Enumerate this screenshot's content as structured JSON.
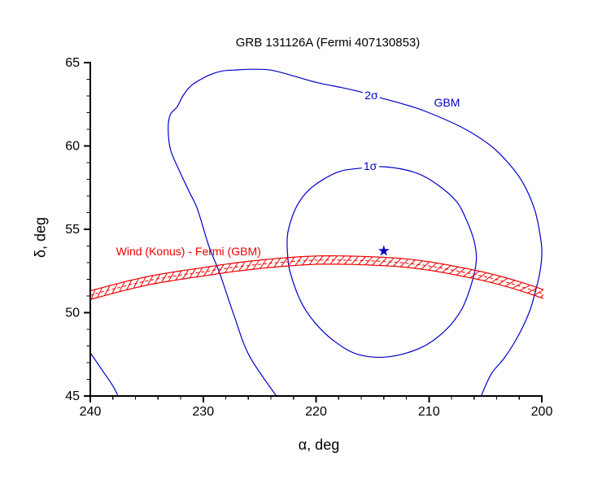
{
  "title": "GRB 131126A (Fermi 407130853)",
  "colors": {
    "contour_blue": "#0000cc",
    "annulus_red": "#ee0000",
    "axis_black": "#000000",
    "background": "#ffffff"
  },
  "chart_data": {
    "type": "line",
    "subtype": "sky-localization contour map",
    "title": "GRB 131126A (Fermi 407130853)",
    "xlabel": "α, deg",
    "ylabel": "δ, deg",
    "xlim": [
      240,
      200
    ],
    "ylim": [
      45,
      65
    ],
    "x_major_ticks": [
      240,
      230,
      220,
      210,
      200
    ],
    "x_minor_step": 2,
    "y_major_ticks": [
      45,
      50,
      55,
      60,
      65
    ],
    "y_minor_step": 1,
    "grid": false,
    "legend": "none",
    "series": [
      {
        "name": "GBM 1-sigma contour",
        "role": "contour",
        "label": "1σ",
        "color": "#0000cc",
        "closed": true,
        "points": [
          [
            213.9,
            58.75
          ],
          [
            216.3,
            58.65
          ],
          [
            218.2,
            58.4
          ],
          [
            220.4,
            57.5
          ],
          [
            221.7,
            56.4
          ],
          [
            222.5,
            54.8
          ],
          [
            222.5,
            53.3
          ],
          [
            222.2,
            52.2
          ],
          [
            221.3,
            50.6
          ],
          [
            220.1,
            49.4
          ],
          [
            218.4,
            48.3
          ],
          [
            216.3,
            47.5
          ],
          [
            213.6,
            47.35
          ],
          [
            210.7,
            47.9
          ],
          [
            208.6,
            48.9
          ],
          [
            207.1,
            50.2
          ],
          [
            206.2,
            51.8
          ],
          [
            205.8,
            53.15
          ],
          [
            206.0,
            54.3
          ],
          [
            206.7,
            55.6
          ],
          [
            207.6,
            56.7
          ],
          [
            209.3,
            57.7
          ],
          [
            211.2,
            58.4
          ]
        ]
      },
      {
        "name": "GBM 2-sigma contour",
        "role": "contour",
        "label": "2σ",
        "color": "#0000cc",
        "closed": false,
        "points": [
          [
            223.3,
            44.8
          ],
          [
            225.9,
            47.4
          ],
          [
            227.3,
            49.9
          ],
          [
            228.5,
            52.3
          ],
          [
            229.5,
            54.0
          ],
          [
            230.5,
            56.2
          ],
          [
            231.2,
            57.2
          ],
          [
            232.1,
            58.5
          ],
          [
            232.9,
            59.8
          ],
          [
            233.1,
            61.1
          ],
          [
            232.9,
            61.9
          ],
          [
            232.3,
            62.35
          ],
          [
            231.8,
            63.0
          ],
          [
            231.1,
            63.6
          ],
          [
            230.2,
            64.0
          ],
          [
            229.3,
            64.3
          ],
          [
            228.3,
            64.5
          ],
          [
            227.3,
            64.55
          ],
          [
            225.6,
            64.6
          ],
          [
            224.0,
            64.55
          ],
          [
            222.0,
            64.2
          ],
          [
            219.9,
            63.8
          ],
          [
            217.7,
            63.5
          ],
          [
            216.1,
            63.25
          ],
          [
            214.1,
            62.85
          ],
          [
            212.2,
            62.5
          ],
          [
            210.2,
            62.05
          ],
          [
            206.9,
            61.05
          ],
          [
            204.5,
            60.0
          ],
          [
            202.8,
            58.85
          ],
          [
            201.6,
            57.7
          ],
          [
            200.6,
            56.1
          ],
          [
            200.1,
            54.45
          ],
          [
            200.0,
            53.5
          ],
          [
            200.2,
            52.3
          ],
          [
            200.6,
            51.2
          ],
          [
            201.1,
            50.05
          ],
          [
            202.1,
            48.6
          ],
          [
            203.3,
            47.3
          ],
          [
            204.5,
            46.3
          ],
          [
            205.5,
            44.8
          ]
        ]
      },
      {
        "name": "GBM 2-sigma contour corner segment",
        "role": "contour",
        "label": "",
        "color": "#0000cc",
        "closed": false,
        "points": [
          [
            240.3,
            47.9
          ],
          [
            239.0,
            46.6
          ],
          [
            238.0,
            45.6
          ],
          [
            237.4,
            44.8
          ]
        ]
      },
      {
        "name": "Wind (Konus) - Fermi (GBM) triangulation annulus",
        "role": "annulus",
        "color": "#ee0000",
        "half_width_deg": 0.25,
        "centerline": [
          [
            241,
            50.85
          ],
          [
            240,
            51.05
          ],
          [
            237.5,
            51.5
          ],
          [
            235,
            51.9
          ],
          [
            232.5,
            52.2
          ],
          [
            230,
            52.45
          ],
          [
            227.5,
            52.7
          ],
          [
            225,
            52.9
          ],
          [
            222.5,
            53.05
          ],
          [
            220,
            53.15
          ],
          [
            217.5,
            53.15
          ],
          [
            215,
            53.1
          ],
          [
            212.5,
            53.0
          ],
          [
            210,
            52.8
          ],
          [
            207.5,
            52.5
          ],
          [
            205,
            52.15
          ],
          [
            202.5,
            51.7
          ],
          [
            200,
            51.15
          ],
          [
            199,
            50.9
          ]
        ]
      },
      {
        "name": "GBM best-fit position",
        "role": "marker",
        "marker": "star",
        "color": "#0000cc",
        "point": [
          214.0,
          53.7
        ]
      }
    ],
    "annotations": [
      {
        "text": "2σ",
        "x": 215.1,
        "y": 63.05,
        "color": "#0000cc",
        "masked": true
      },
      {
        "text": "GBM",
        "x": 208.4,
        "y": 62.6,
        "color": "#0000cc",
        "masked": false
      },
      {
        "text": "1σ",
        "x": 215.2,
        "y": 58.8,
        "color": "#0000cc",
        "masked": true
      },
      {
        "text": "Wind (Konus) - Fermi (GBM)",
        "x": 231.3,
        "y": 53.7,
        "color": "#ee0000",
        "masked": false
      }
    ]
  }
}
